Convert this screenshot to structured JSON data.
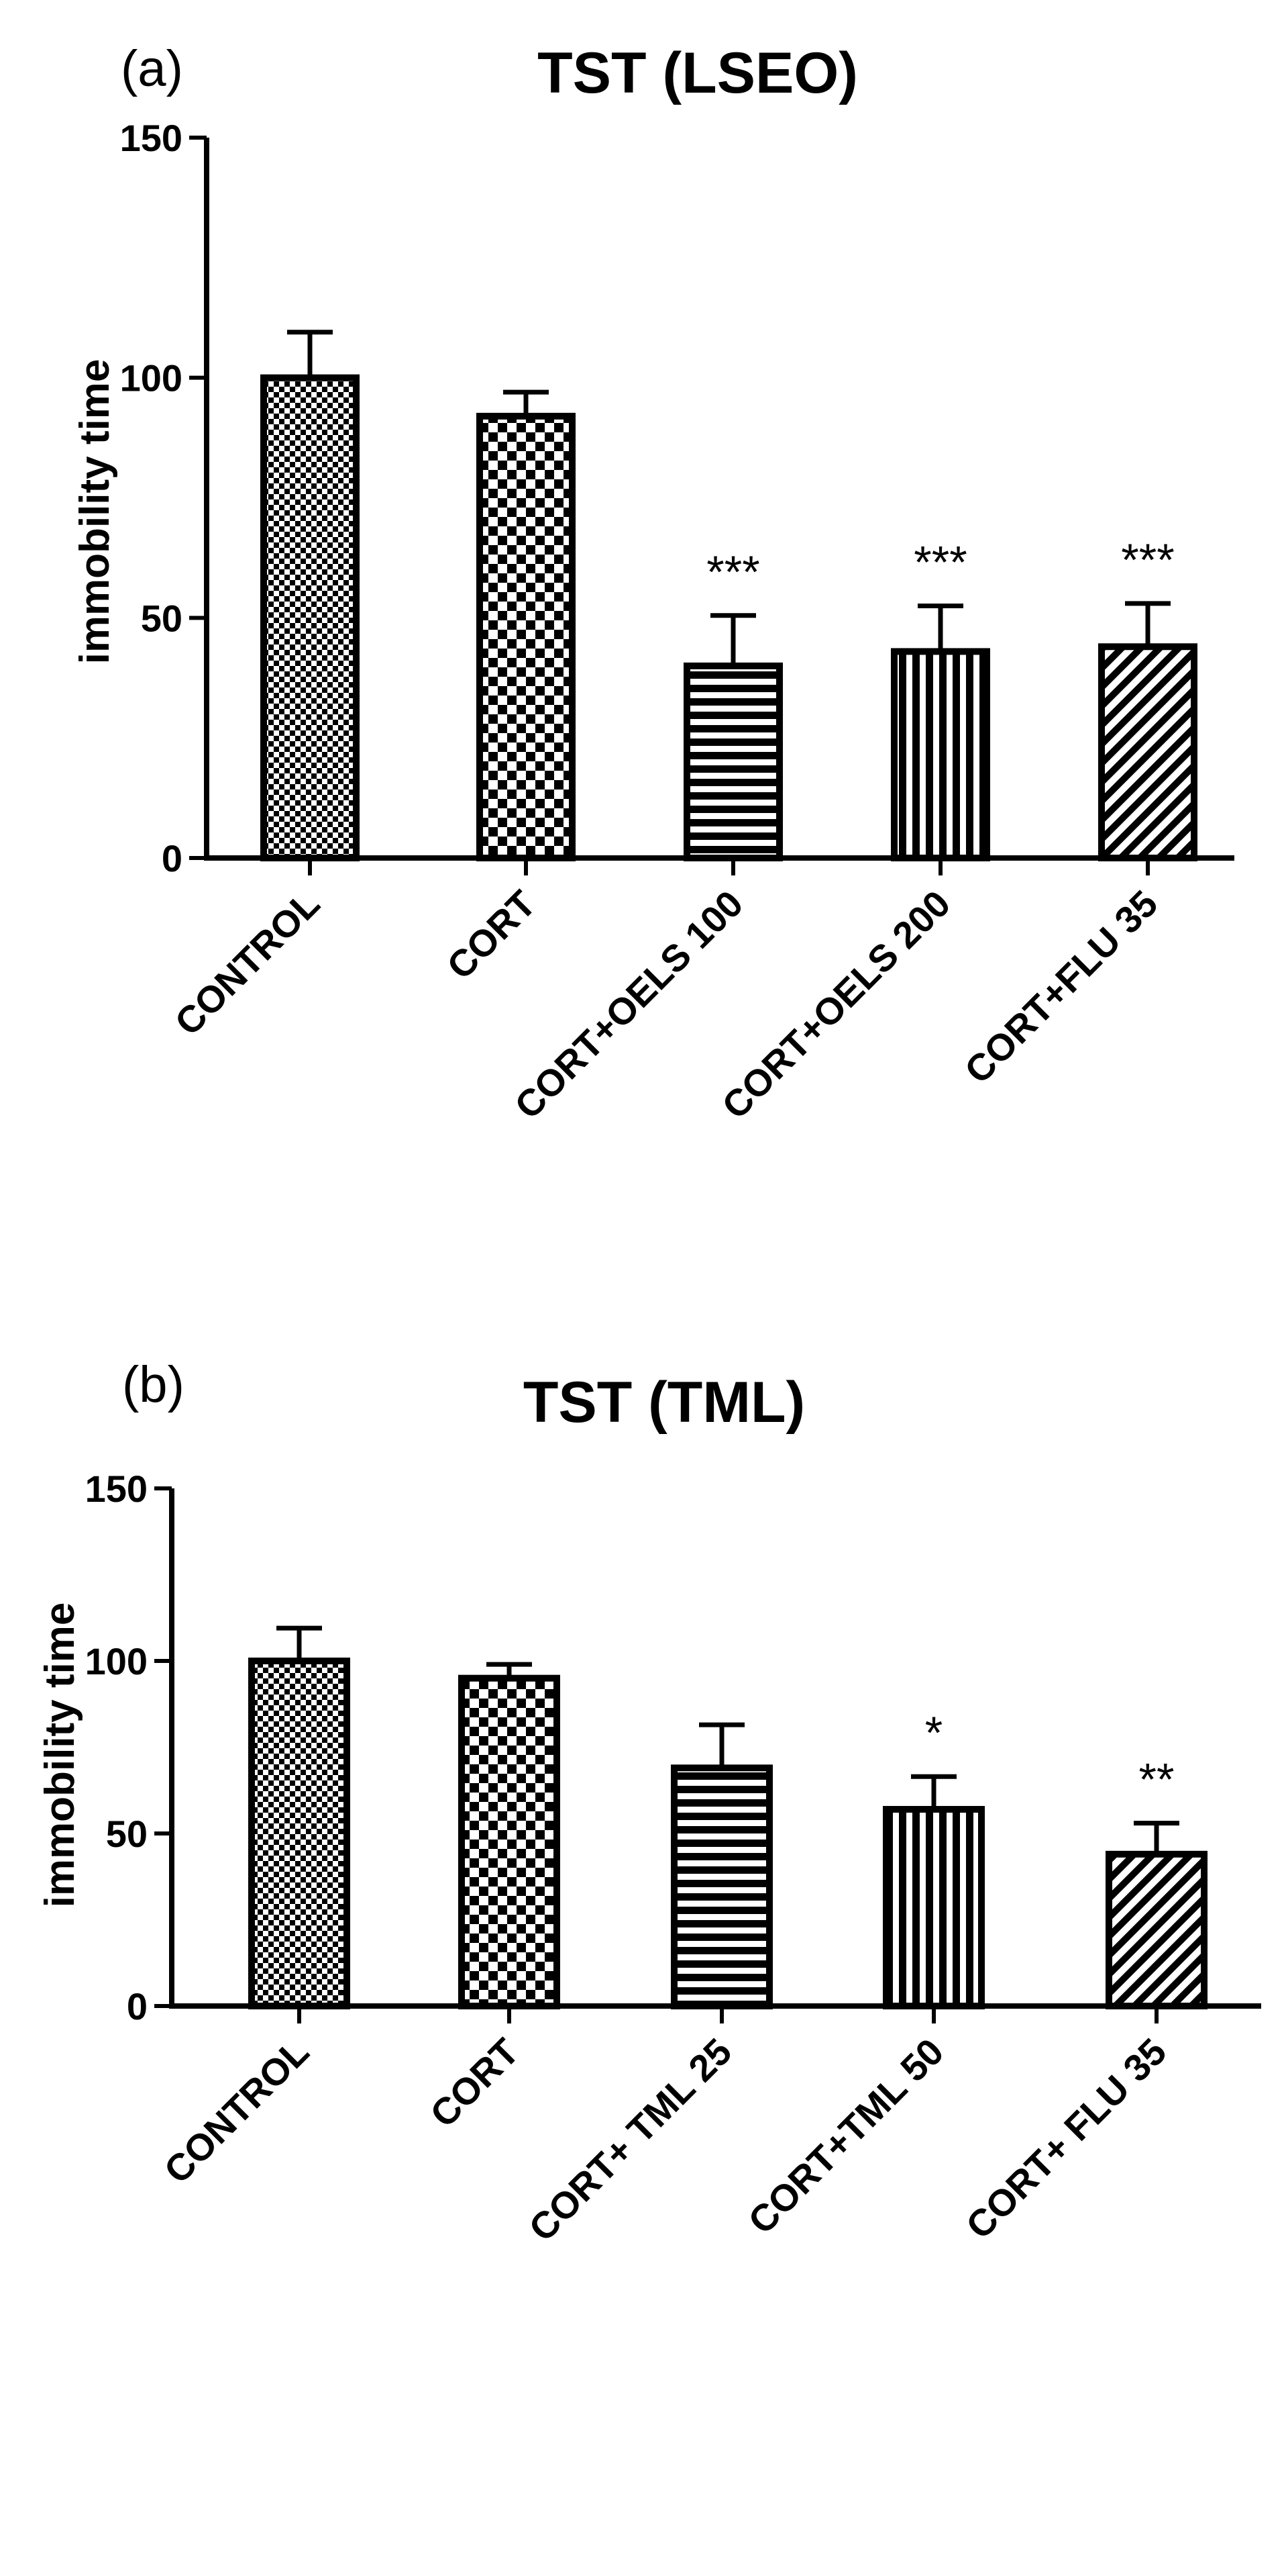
{
  "chart_data": [
    {
      "type": "bar",
      "panel_label": "(a)",
      "title": "TST (LSEO)",
      "xlabel": "",
      "ylabel": "immobility time",
      "ylim": [
        0,
        150
      ],
      "yticks": [
        0,
        50,
        100,
        150
      ],
      "categories": [
        "CONTROL",
        "CORT",
        "CORT+OELS 100",
        "CORT+OELS 200",
        "CORT+FLU 35"
      ],
      "values": [
        100,
        92,
        40,
        43,
        44
      ],
      "error": [
        9.5,
        5,
        10.5,
        9.5,
        9
      ],
      "significance": [
        "",
        "",
        "***",
        "***",
        "***"
      ],
      "patterns": [
        "fine-check",
        "check",
        "horizontal",
        "vertical",
        "diagonal"
      ]
    },
    {
      "type": "bar",
      "panel_label": "(b)",
      "title": "TST (TML)",
      "xlabel": "",
      "ylabel": "immobility time",
      "ylim": [
        0,
        150
      ],
      "yticks": [
        0,
        50,
        100,
        150
      ],
      "categories": [
        "CONTROL",
        "CORT",
        "CORT+ TML 25",
        "CORT+TML 50",
        "CORT+ FLU 35"
      ],
      "values": [
        100,
        95,
        69,
        57,
        44
      ],
      "error": [
        9.5,
        4,
        12.5,
        9.5,
        9
      ],
      "significance": [
        "",
        "",
        "",
        "*",
        "**"
      ],
      "patterns": [
        "fine-check",
        "check",
        "horizontal",
        "vertical",
        "diagonal"
      ]
    }
  ]
}
